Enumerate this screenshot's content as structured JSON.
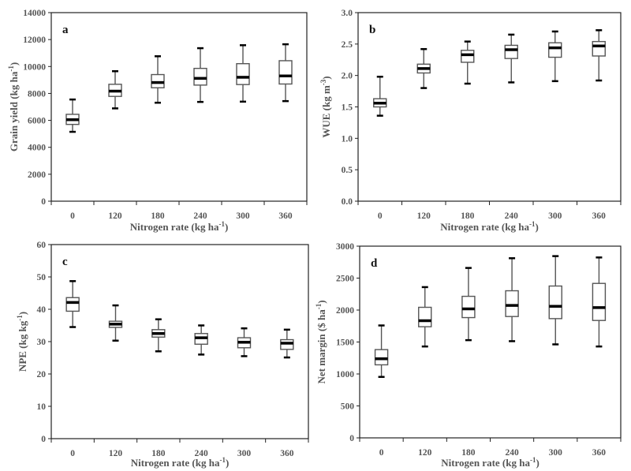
{
  "chart_data": [
    {
      "type": "boxplot",
      "panel_label": "a",
      "categories": [
        "0",
        "120",
        "180",
        "240",
        "300",
        "360"
      ],
      "xlabel": {
        "main": "Nitrogen rate (kg ha",
        "sup": "-1",
        "end": ")"
      },
      "ylabel": {
        "main": "Grain yield (kg ha",
        "sup": "-1",
        "end": ")"
      },
      "ylim": [
        0,
        14000
      ],
      "yticks": [
        0,
        2000,
        4000,
        6000,
        8000,
        10000,
        12000,
        14000
      ],
      "ytick_labels": [
        "0",
        "2000",
        "4000",
        "6000",
        "8000",
        "10000",
        "12000",
        "14000"
      ],
      "boxes": [
        {
          "min": 5150,
          "q1": 5700,
          "median": 6050,
          "q3": 6450,
          "max": 7550
        },
        {
          "min": 6890,
          "q1": 7780,
          "median": 8170,
          "q3": 8680,
          "max": 9650
        },
        {
          "min": 7310,
          "q1": 8420,
          "median": 8810,
          "q3": 9400,
          "max": 10760
        },
        {
          "min": 7370,
          "q1": 8620,
          "median": 9120,
          "q3": 9860,
          "max": 11360
        },
        {
          "min": 7390,
          "q1": 8660,
          "median": 9200,
          "q3": 10210,
          "max": 11580
        },
        {
          "min": 7430,
          "q1": 8700,
          "median": 9300,
          "q3": 10430,
          "max": 11650
        }
      ]
    },
    {
      "type": "boxplot",
      "panel_label": "b",
      "categories": [
        "0",
        "120",
        "180",
        "240",
        "300",
        "360"
      ],
      "xlabel": {
        "main": "Nitrogen rate (kg ha",
        "sup": "-1",
        "end": ")"
      },
      "ylabel": {
        "main": "WUE (kg m",
        "sup": "-3",
        "end": ")"
      },
      "ylim": [
        0,
        3.0
      ],
      "yticks": [
        0,
        0.5,
        1.0,
        1.5,
        2.0,
        2.5,
        3.0
      ],
      "ytick_labels": [
        "0.0",
        "0.5",
        "1.0",
        "1.5",
        "2.0",
        "2.5",
        "3.0"
      ],
      "boxes": [
        {
          "min": 1.36,
          "q1": 1.5,
          "median": 1.56,
          "q3": 1.63,
          "max": 1.98
        },
        {
          "min": 1.8,
          "q1": 2.04,
          "median": 2.11,
          "q3": 2.18,
          "max": 2.42
        },
        {
          "min": 1.87,
          "q1": 2.21,
          "median": 2.33,
          "q3": 2.4,
          "max": 2.54
        },
        {
          "min": 1.89,
          "q1": 2.27,
          "median": 2.41,
          "q3": 2.48,
          "max": 2.65
        },
        {
          "min": 1.91,
          "q1": 2.29,
          "median": 2.44,
          "q3": 2.52,
          "max": 2.7
        },
        {
          "min": 1.92,
          "q1": 2.31,
          "median": 2.47,
          "q3": 2.54,
          "max": 2.72
        }
      ]
    },
    {
      "type": "boxplot",
      "panel_label": "c",
      "categories": [
        "0",
        "120",
        "180",
        "240",
        "300",
        "360"
      ],
      "xlabel": {
        "main": "Nitrogen rate (kg ha",
        "sup": "-1",
        "end": ")"
      },
      "ylabel": {
        "main": "NPE (kg kg",
        "sup": "-1",
        "end": ")"
      },
      "ylim": [
        0,
        60
      ],
      "yticks": [
        0,
        10,
        20,
        30,
        40,
        50,
        60
      ],
      "ytick_labels": [
        "0",
        "10",
        "20",
        "30",
        "40",
        "50",
        "60"
      ],
      "boxes": [
        {
          "min": 34.5,
          "q1": 39.4,
          "median": 42.1,
          "q3": 43.6,
          "max": 48.7
        },
        {
          "min": 30.3,
          "q1": 34.4,
          "median": 35.4,
          "q3": 36.3,
          "max": 41.2
        },
        {
          "min": 27.0,
          "q1": 31.4,
          "median": 32.5,
          "q3": 33.7,
          "max": 36.9
        },
        {
          "min": 26.0,
          "q1": 29.2,
          "median": 31.2,
          "q3": 32.5,
          "max": 35.0
        },
        {
          "min": 25.5,
          "q1": 28.1,
          "median": 29.8,
          "q3": 31.2,
          "max": 34.1
        },
        {
          "min": 25.1,
          "q1": 27.6,
          "median": 29.5,
          "q3": 30.6,
          "max": 33.7
        }
      ]
    },
    {
      "type": "boxplot",
      "panel_label": "d",
      "categories": [
        "0",
        "120",
        "180",
        "240",
        "300",
        "360"
      ],
      "xlabel": {
        "main": "Nitrogen rate (kg ha",
        "sup": "-1",
        "end": ")"
      },
      "ylabel": {
        "main": "Net margin ($ ha",
        "sup": "-1",
        "end": ")"
      },
      "ylim": [
        0,
        3000
      ],
      "yticks": [
        0,
        500,
        1000,
        1500,
        2000,
        2500,
        3000
      ],
      "ytick_labels": [
        "0",
        "500",
        "1000",
        "1500",
        "2000",
        "2500",
        "3000"
      ],
      "boxes": [
        {
          "min": 954,
          "q1": 1143,
          "median": 1237,
          "q3": 1381,
          "max": 1759
        },
        {
          "min": 1430,
          "q1": 1739,
          "median": 1833,
          "q3": 2043,
          "max": 2359
        },
        {
          "min": 1529,
          "q1": 1882,
          "median": 2018,
          "q3": 2215,
          "max": 2659
        },
        {
          "min": 1513,
          "q1": 1899,
          "median": 2072,
          "q3": 2302,
          "max": 2811
        },
        {
          "min": 1463,
          "q1": 1866,
          "median": 2059,
          "q3": 2376,
          "max": 2844
        },
        {
          "min": 1430,
          "q1": 1837,
          "median": 2039,
          "q3": 2417,
          "max": 2823
        }
      ]
    }
  ]
}
